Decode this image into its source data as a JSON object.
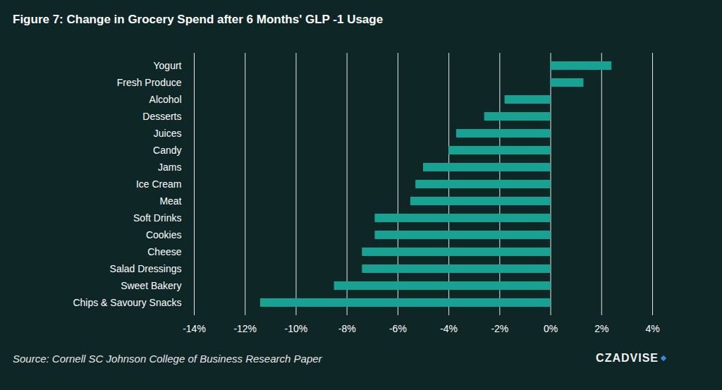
{
  "chart_data": {
    "type": "bar",
    "title": "Figure 7: Change in Grocery Spend after 6 Months' GLP -1 Usage",
    "caption": "Source: Cornell SC Johnson College of Business Research Paper",
    "annotations": [
      "CZADVISE"
    ],
    "orientation": "horizontal",
    "categories": [
      "Yogurt",
      "Fresh Produce",
      "Alcohol",
      "Desserts",
      "Juices",
      "Candy",
      "Jams",
      "Ice Cream",
      "Meat",
      "Soft Drinks",
      "Cookies",
      "Cheese",
      "Salad Dressings",
      "Sweet Bakery",
      "Chips & Savoury Snacks"
    ],
    "values": [
      2.4,
      1.3,
      -1.8,
      -2.6,
      -3.7,
      -4.0,
      -5.0,
      -5.3,
      -5.5,
      -6.9,
      -6.9,
      -7.4,
      -7.4,
      -8.5,
      -11.4
    ],
    "color": "#16a394",
    "xlim": [
      -14,
      4
    ],
    "xticks": [
      {
        "value": -14,
        "label": "-14%"
      },
      {
        "value": -12,
        "label": "-12%"
      },
      {
        "value": -10,
        "label": "-10%"
      },
      {
        "value": -8,
        "label": "-8%"
      },
      {
        "value": -6,
        "label": "-6%"
      },
      {
        "value": -4,
        "label": "-4%"
      },
      {
        "value": -2,
        "label": "-2%"
      },
      {
        "value": 0,
        "label": "0%"
      },
      {
        "value": 2,
        "label": "2%"
      },
      {
        "value": 4,
        "label": "4%"
      }
    ],
    "grid": true
  }
}
